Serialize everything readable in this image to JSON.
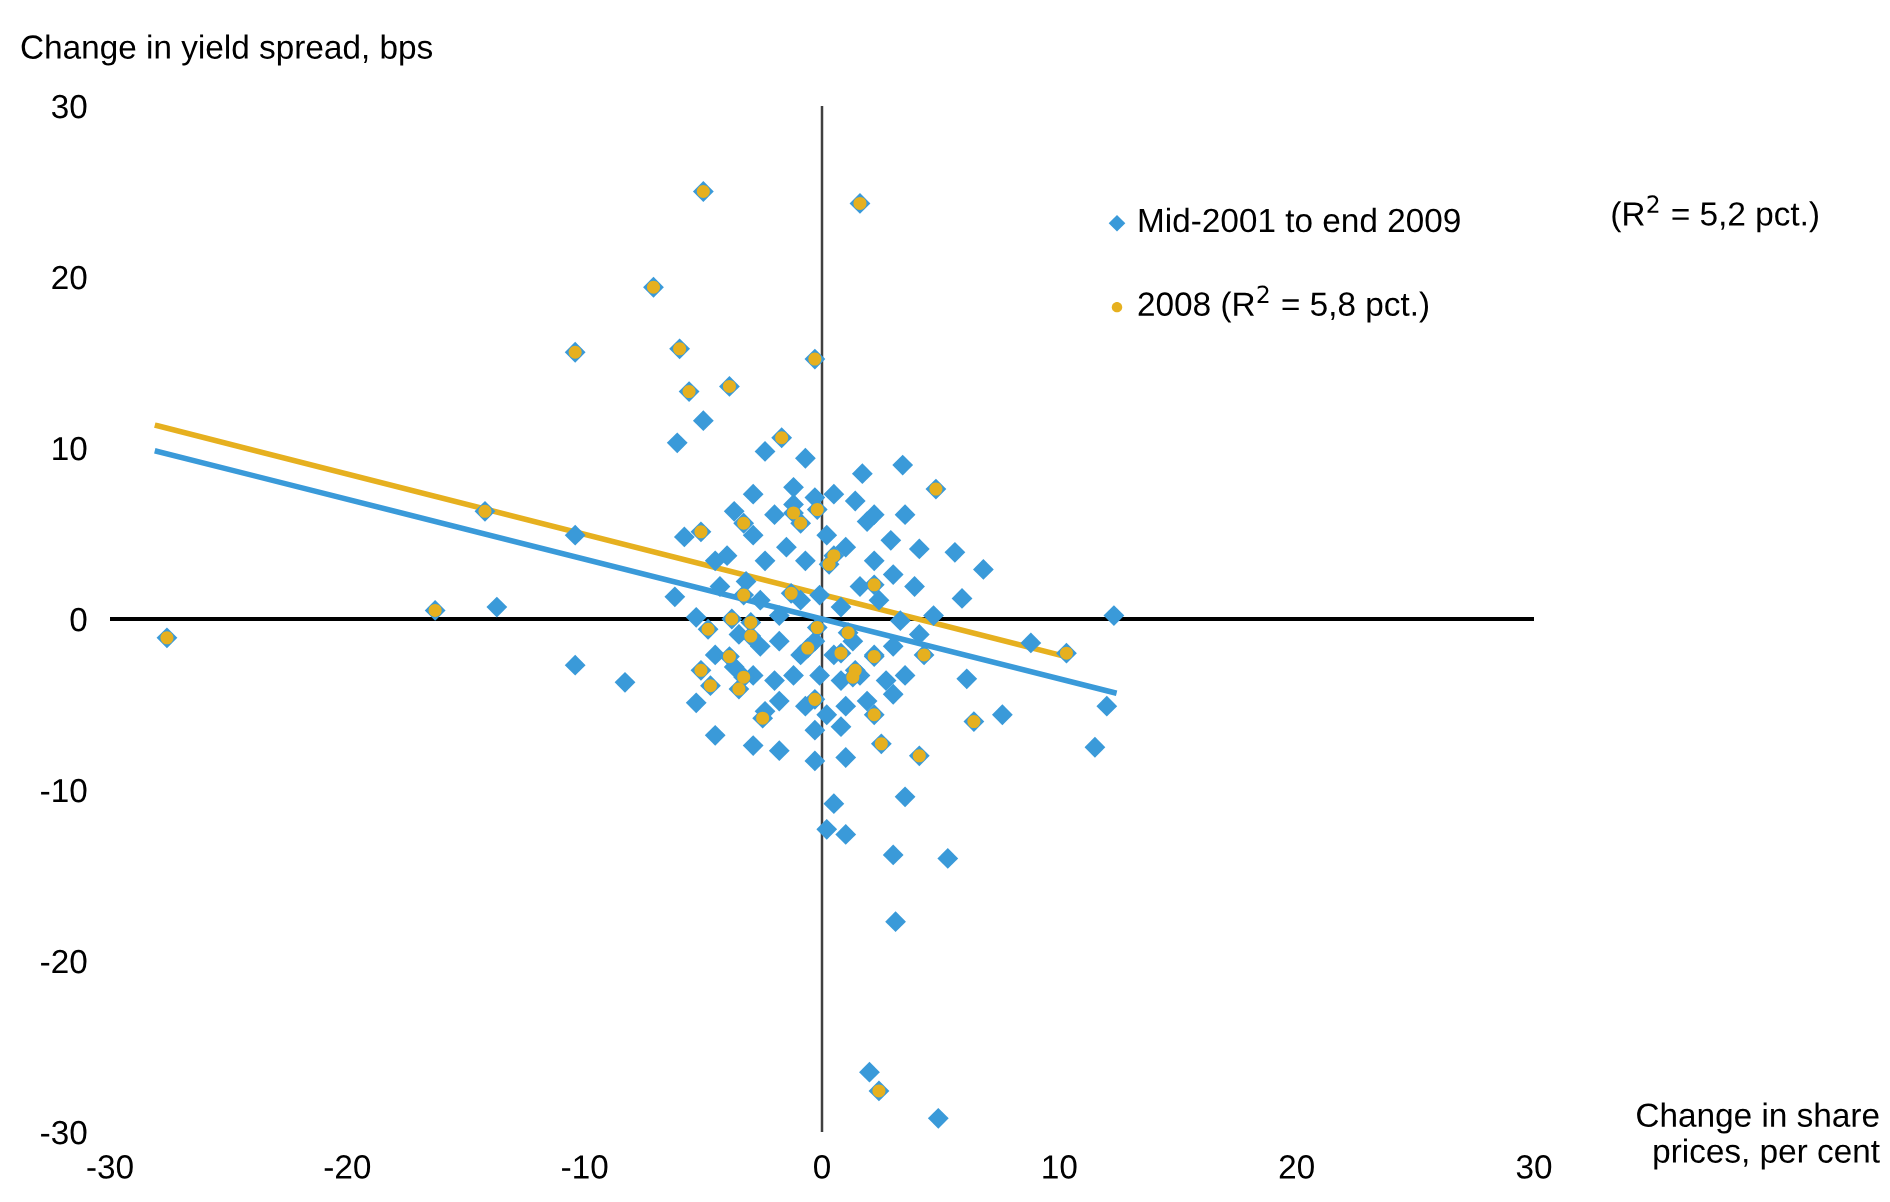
{
  "chart_data": {
    "type": "scatter",
    "ylabel": "Change in yield spread, bps",
    "xlabel": "Change in share\nprices, per cent",
    "annotations": [
      "(R$^{2}$ = 5,2 pct.)"
    ],
    "xlim": [
      -30,
      30
    ],
    "ylim": [
      -30,
      30
    ],
    "xticks": [
      -30,
      -20,
      -10,
      0,
      10,
      20,
      30
    ],
    "yticks": [
      -30,
      -20,
      -10,
      0,
      10,
      20,
      30
    ],
    "legend": "top right",
    "ref_lines": [
      {
        "axis": "x",
        "value": 0,
        "color": "#404040"
      },
      {
        "axis": "y",
        "value": 0,
        "color": "#000000"
      }
    ],
    "series": [
      {
        "name": "Mid-2001 to end 2009",
        "color": "#3a9ad9",
        "marker": "diamond",
        "x": [
          -5.0,
          1.6,
          -7.1,
          -10.4,
          -6.0,
          -0.3,
          -5.6,
          -3.9,
          -5.0,
          -6.1,
          -1.7,
          -14.2,
          -10.4,
          -16.3,
          -13.7,
          -10.4,
          -8.3,
          -27.6,
          12.3,
          10.3,
          12.0,
          11.5,
          8.8,
          7.6,
          6.4,
          6.1,
          4.1,
          3.5,
          0.5,
          0.2,
          1.0,
          3.0,
          5.3,
          3.1,
          2.0,
          2.4,
          4.9,
          4.3,
          2.5,
          2.2,
          -2.4,
          -0.7,
          1.7,
          3.4,
          4.8,
          -1.2,
          -5.8,
          -5.1,
          -6.2,
          -5.3,
          -4.8,
          -5.1,
          -4.7,
          -5.3,
          -4.5,
          -2.5,
          -2.9,
          -1.8,
          -0.3,
          1.0,
          6.8,
          5.6,
          5.9,
          4.1,
          -3.7,
          -2.9,
          -2.0,
          -1.2,
          -0.3,
          0.5,
          1.4,
          1.9,
          2.9,
          3.5,
          -4.0,
          -3.2,
          -2.4,
          -1.5,
          -0.7,
          0.2,
          1.0,
          2.2,
          3.0,
          3.9,
          4.7,
          -2.6,
          -1.8,
          -0.9,
          -0.1,
          0.8,
          1.6,
          2.4,
          3.3,
          4.1,
          -3.5,
          -2.6,
          -1.8,
          -0.9,
          -0.3,
          0.5,
          1.3,
          2.2,
          3.0,
          -3.7,
          -2.9,
          -2.0,
          -1.2,
          -0.1,
          0.8,
          1.6,
          2.7,
          3.5,
          -1.8,
          -0.7,
          0.2,
          1.0,
          1.9,
          3.0,
          -0.3,
          0.8,
          -2.4,
          -4.5,
          -4.3,
          -4.5,
          -2.9,
          2.2,
          -3.3,
          -1.2,
          -0.9,
          -0.2,
          0.5,
          0.3,
          2.2,
          -3.3,
          -1.3,
          -3.8,
          -3.0,
          -3.0,
          -0.2,
          1.1,
          -0.6,
          0.8,
          2.2,
          -3.9,
          -3.5,
          -3.3,
          1.4,
          1.3,
          -0.3
        ],
        "values": [
          25.0,
          24.3,
          19.4,
          15.6,
          15.8,
          15.2,
          13.3,
          13.6,
          11.6,
          10.3,
          10.6,
          6.3,
          4.9,
          0.5,
          0.7,
          -2.7,
          -3.7,
          -1.1,
          0.2,
          -2.0,
          -5.1,
          -7.5,
          -1.4,
          -5.6,
          -6.0,
          -3.5,
          -8.0,
          -10.4,
          -10.8,
          -12.3,
          -12.6,
          -13.8,
          -14.0,
          -17.7,
          -26.5,
          -27.6,
          -29.2,
          -2.1,
          -7.3,
          -5.6,
          9.8,
          9.4,
          8.5,
          9.0,
          7.6,
          7.7,
          4.8,
          5.1,
          1.3,
          0.1,
          -0.6,
          -3.0,
          -3.9,
          -4.9,
          -6.8,
          -5.8,
          -7.4,
          -7.7,
          -8.3,
          -8.1,
          2.9,
          3.9,
          1.2,
          4.1,
          6.3,
          4.9,
          6.1,
          6.7,
          7.1,
          7.3,
          6.9,
          5.7,
          4.6,
          6.1,
          3.7,
          2.2,
          3.4,
          4.2,
          3.4,
          4.9,
          4.2,
          3.4,
          2.6,
          1.9,
          0.2,
          1.1,
          0.2,
          1.1,
          1.4,
          0.7,
          1.9,
          1.1,
          -0.1,
          -0.9,
          -0.9,
          -1.6,
          -1.3,
          -2.1,
          -1.3,
          -2.1,
          -1.3,
          -2.1,
          -1.6,
          -2.8,
          -3.3,
          -3.6,
          -3.3,
          -3.3,
          -3.6,
          -3.3,
          -3.6,
          -3.3,
          -4.8,
          -5.1,
          -5.6,
          -5.1,
          -4.8,
          -4.4,
          -6.5,
          -6.3,
          -5.4,
          3.4,
          1.9,
          -2.1,
          7.3,
          6.1,
          5.6,
          6.2,
          5.6,
          6.4,
          3.7,
          3.2,
          2.0,
          1.4,
          1.5,
          0.0,
          -0.2,
          -1.0,
          -0.5,
          -0.8,
          -1.7,
          -2.0,
          -2.2,
          -2.2,
          -4.1,
          -3.4,
          -3.0,
          -3.4,
          -4.7
        ]
      },
      {
        "name": "2008 (R$^{2}$ = 5,8 pct.)",
        "color": "#e6b01f",
        "marker": "circle",
        "x": [
          -5.0,
          1.6,
          -7.1,
          -10.4,
          -6.0,
          -0.3,
          -5.6,
          -3.9,
          -1.7,
          -14.2,
          -16.3,
          -27.6,
          10.3,
          6.4,
          4.1,
          2.4,
          4.3,
          2.5,
          2.2,
          4.8,
          -5.1,
          -4.8,
          -5.1,
          -4.7,
          -2.5,
          -3.3,
          -1.2,
          -0.9,
          -0.2,
          0.5,
          0.3,
          2.2,
          -3.3,
          -1.3,
          -3.8,
          -3.0,
          -3.0,
          -0.2,
          1.1,
          -0.6,
          0.8,
          2.2,
          -3.9,
          -3.5,
          -3.3,
          1.4,
          1.3,
          -0.3
        ],
        "values": [
          25.0,
          24.3,
          19.4,
          15.6,
          15.8,
          15.2,
          13.3,
          13.6,
          10.6,
          6.3,
          0.5,
          -1.1,
          -2.0,
          -6.0,
          -8.0,
          -27.6,
          -2.1,
          -7.3,
          -5.6,
          7.6,
          5.1,
          -0.6,
          -3.0,
          -3.9,
          -5.8,
          5.6,
          6.2,
          5.6,
          6.4,
          3.7,
          3.2,
          2.0,
          1.4,
          1.5,
          0.0,
          -0.2,
          -1.0,
          -0.5,
          -0.8,
          -1.7,
          -2.0,
          -2.2,
          -2.2,
          -4.1,
          -3.4,
          -3.0,
          -3.4,
          -4.7
        ]
      },
      {
        "type": "line",
        "color": "#3a9ad9",
        "line_style": "solid",
        "x": [
          -28,
          12.3
        ],
        "values": [
          9.8,
          -4.3
        ]
      },
      {
        "type": "line",
        "color": "#e6b01f",
        "line_style": "solid",
        "x": [
          -28,
          10
        ],
        "values": [
          11.3,
          -2.1
        ]
      }
    ]
  }
}
